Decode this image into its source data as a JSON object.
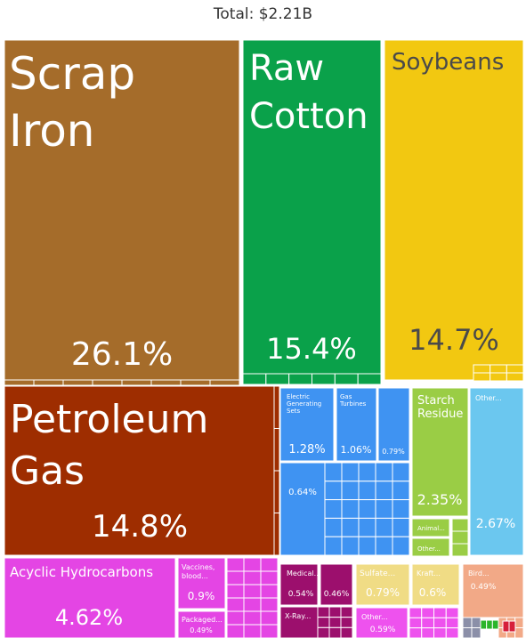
{
  "total_label": "Total: $2.21B",
  "chart_data": {
    "type": "treemap",
    "title": "Total: $2.21B",
    "unit": "percent of total",
    "items": [
      {
        "name": "Scrap Iron",
        "name_lines": [
          "Scrap",
          "Iron"
        ],
        "value": 26.1,
        "value_label": "26.1%",
        "color": "#a56c2a"
      },
      {
        "name": "Raw Cotton",
        "name_lines": [
          "Raw",
          "Cotton"
        ],
        "value": 15.4,
        "value_label": "15.4%",
        "color": "#0aa14a"
      },
      {
        "name": "Soybeans",
        "name_lines": [
          "Soybeans"
        ],
        "value": 14.7,
        "value_label": "14.7%",
        "color": "#f2c811"
      },
      {
        "name": "Petroleum Gas",
        "name_lines": [
          "Petroleum",
          "Gas"
        ],
        "value": 14.8,
        "value_label": "14.8%",
        "color": "#9e2d00"
      },
      {
        "name": "Acyclic Hydrocarbons",
        "name_lines": [
          "Acyclic Hydrocarbons"
        ],
        "value": 4.62,
        "value_label": "4.62%",
        "color": "#e445e4"
      },
      {
        "name": "Vaccines, blood...",
        "name_lines": [
          "Vaccines,",
          "blood..."
        ],
        "value": 0.9,
        "value_label": "0.9%",
        "color": "#e445e4"
      },
      {
        "name": "Packaged...",
        "name_lines": [
          "Packaged..."
        ],
        "value": 0.49,
        "value_label": "0.49%",
        "color": "#e445e4"
      },
      {
        "name": "Electric Generating Sets",
        "name_lines": [
          "Electric",
          "Generating",
          "Sets"
        ],
        "value": 1.28,
        "value_label": "1.28%",
        "color": "#3f93f2"
      },
      {
        "name": "Gas Turbines",
        "name_lines": [
          "Gas",
          "Turbines"
        ],
        "value": 1.06,
        "value_label": "1.06%",
        "color": "#3f93f2"
      },
      {
        "name": "",
        "name_lines": [],
        "value": 0.79,
        "value_label": "0.79%",
        "color": "#3f93f2"
      },
      {
        "name": "",
        "name_lines": [],
        "value": 0.64,
        "value_label": "0.64%",
        "color": "#3f93f2"
      },
      {
        "name": "Starch Residue",
        "name_lines": [
          "Starch",
          "Residue"
        ],
        "value": 2.35,
        "value_label": "2.35%",
        "color": "#9acd45"
      },
      {
        "name": "Animal...",
        "name_lines": [
          "Animal..."
        ],
        "value": null,
        "value_label": "",
        "color": "#9acd45"
      },
      {
        "name": "Other...",
        "name_lines": [
          "Other..."
        ],
        "value": null,
        "value_label": "",
        "color": "#9acd45"
      },
      {
        "name": "Other...",
        "name_lines": [
          "Other..."
        ],
        "value": 2.67,
        "value_label": "2.67%",
        "color": "#6bc7ef"
      },
      {
        "name": "Medical...",
        "name_lines": [
          "Medical..."
        ],
        "value": 0.54,
        "value_label": "0.54%",
        "color": "#9c0f6d"
      },
      {
        "name": "",
        "name_lines": [],
        "value": 0.46,
        "value_label": "0.46%",
        "color": "#9c0f6d"
      },
      {
        "name": "X-Ray...",
        "name_lines": [
          "X-Ray..."
        ],
        "value": null,
        "value_label": "",
        "color": "#9c0f6d"
      },
      {
        "name": "Sulfate...",
        "name_lines": [
          "Sulfate..."
        ],
        "value": 0.79,
        "value_label": "0.79%",
        "color": "#f0dc85"
      },
      {
        "name": "Kraft...",
        "name_lines": [
          "Kraft..."
        ],
        "value": 0.6,
        "value_label": "0.6%",
        "color": "#f0dc85"
      },
      {
        "name": "Other...",
        "name_lines": [
          "Other..."
        ],
        "value": 0.59,
        "value_label": "0.59%",
        "color": "#ee52ee"
      },
      {
        "name": "Bird...",
        "name_lines": [
          "Bird..."
        ],
        "value": 0.49,
        "value_label": "0.49%",
        "color": "#f2a987"
      }
    ]
  }
}
